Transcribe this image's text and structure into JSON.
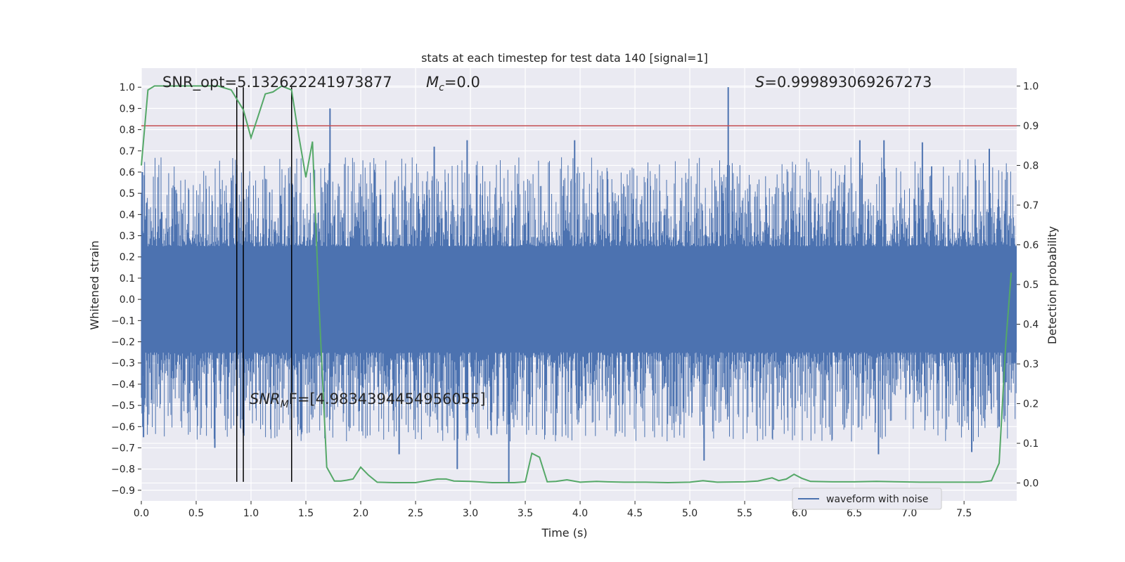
{
  "chart_data": {
    "type": "line",
    "title": "stats at each timestep for test data 140 [signal=1]",
    "xlabel": "Time (s)",
    "ylabel": "Whitened strain",
    "ylabel_right": "Detection probability",
    "xlim": [
      0.0,
      7.98
    ],
    "ylim": [
      -0.95,
      1.09
    ],
    "ylim_right": [
      -0.045,
      1.045
    ],
    "xticks": [
      0.0,
      0.5,
      1.0,
      1.5,
      2.0,
      2.5,
      3.0,
      3.5,
      4.0,
      4.5,
      5.0,
      5.5,
      6.0,
      6.5,
      7.0,
      7.5
    ],
    "xtick_labels": [
      "0.0",
      "0.5",
      "1.0",
      "1.5",
      "2.0",
      "2.5",
      "3.0",
      "3.5",
      "4.0",
      "4.5",
      "5.0",
      "5.5",
      "6.0",
      "6.5",
      "7.0",
      "7.5"
    ],
    "yticks": [
      1.0,
      0.9,
      0.8,
      0.7,
      0.6,
      0.5,
      0.4,
      0.3,
      0.2,
      0.1,
      0.0,
      -0.1,
      -0.2,
      -0.3,
      -0.4,
      -0.5,
      -0.6,
      -0.7,
      -0.8,
      -0.9
    ],
    "ytick_labels": [
      "1.0",
      "0.9",
      "0.8",
      "0.7",
      "0.6",
      "0.5",
      "0.4",
      "0.3",
      "0.2",
      "0.1",
      "0.0",
      "−0.1",
      "−0.2",
      "−0.3",
      "−0.4",
      "−0.5",
      "−0.6",
      "−0.7",
      "−0.8",
      "−0.9"
    ],
    "yticks_right": [
      1.0,
      0.9,
      0.8,
      0.7,
      0.6,
      0.5,
      0.4,
      0.3,
      0.2,
      0.1,
      0.0
    ],
    "ytick_labels_right": [
      "1.0",
      "0.9",
      "0.8",
      "0.7",
      "0.6",
      "0.5",
      "0.4",
      "0.3",
      "0.2",
      "0.1",
      "0.0"
    ],
    "threshold_line": {
      "axis": "right",
      "value": 0.9,
      "color": "#c44e52"
    },
    "vlines": [
      0.87,
      0.93,
      1.37
    ],
    "vline_range": [
      -0.86,
      1.0
    ],
    "waveform": {
      "name": "waveform with noise",
      "color": "#4c72b0",
      "core_amplitude": 0.25,
      "spikes": [
        {
          "t": 1.72,
          "v": 0.9
        },
        {
          "t": 5.35,
          "v": 1.0
        },
        {
          "t": 0.01,
          "v": 0.6
        },
        {
          "t": 2.97,
          "v": 0.75
        },
        {
          "t": 2.67,
          "v": 0.72
        },
        {
          "t": 3.95,
          "v": 0.75
        },
        {
          "t": 6.77,
          "v": 0.75
        },
        {
          "t": 6.55,
          "v": 0.75
        },
        {
          "t": 7.12,
          "v": 0.74
        },
        {
          "t": 7.73,
          "v": 0.71
        },
        {
          "t": 3.35,
          "v": -0.86
        },
        {
          "t": 0.93,
          "v": -0.63
        },
        {
          "t": 2.88,
          "v": -0.8
        },
        {
          "t": 6.72,
          "v": -0.73
        },
        {
          "t": 7.57,
          "v": -0.72
        },
        {
          "t": 0.02,
          "v": -0.65
        },
        {
          "t": 0.67,
          "v": -0.7
        },
        {
          "t": 5.13,
          "v": -0.76
        },
        {
          "t": 7.82,
          "v": -0.6
        },
        {
          "t": 2.35,
          "v": -0.73
        }
      ]
    },
    "detection_probability": {
      "color": "#55a868",
      "t": [
        0.0,
        0.06,
        0.12,
        0.25,
        0.4,
        0.55,
        0.7,
        0.82,
        0.93,
        1.0,
        1.06,
        1.13,
        1.2,
        1.28,
        1.37,
        1.42,
        1.5,
        1.56,
        1.62,
        1.69,
        1.76,
        1.82,
        1.87,
        1.93,
        2.0,
        2.07,
        2.15,
        2.3,
        2.5,
        2.7,
        2.78,
        2.85,
        3.0,
        3.2,
        3.4,
        3.5,
        3.56,
        3.63,
        3.7,
        3.78,
        3.88,
        4.0,
        4.15,
        4.25,
        4.4,
        4.6,
        4.8,
        5.0,
        5.12,
        5.25,
        5.5,
        5.62,
        5.75,
        5.81,
        5.88,
        5.95,
        6.02,
        6.1,
        6.3,
        6.5,
        6.7,
        6.9,
        7.1,
        7.3,
        7.5,
        7.65,
        7.75,
        7.82,
        7.88,
        7.93
      ],
      "p": [
        0.8,
        0.99,
        1.0,
        1.0,
        1.0,
        1.0,
        1.0,
        0.99,
        0.94,
        0.87,
        0.92,
        0.98,
        0.985,
        1.0,
        0.99,
        0.9,
        0.77,
        0.86,
        0.45,
        0.04,
        0.005,
        0.005,
        0.007,
        0.01,
        0.04,
        0.02,
        0.002,
        0.001,
        0.001,
        0.01,
        0.01,
        0.005,
        0.004,
        0.001,
        0.001,
        0.003,
        0.075,
        0.065,
        0.003,
        0.004,
        0.008,
        0.002,
        0.004,
        0.003,
        0.002,
        0.002,
        0.001,
        0.002,
        0.006,
        0.002,
        0.003,
        0.005,
        0.013,
        0.006,
        0.01,
        0.022,
        0.012,
        0.004,
        0.003,
        0.003,
        0.004,
        0.003,
        0.002,
        0.002,
        0.002,
        0.002,
        0.006,
        0.05,
        0.35,
        0.53
      ]
    },
    "annotations": {
      "snr_opt": "SNR_opt=5.132622241973877",
      "mc_symbol": "M",
      "mc_sub": "c",
      "mc_value": "=0.0",
      "s_symbol": "S",
      "s_value": "=0.999893069267273",
      "snr_mf_symbol": "SNR",
      "snr_mf_sub": "M",
      "snr_mf_value": "F=[4.983439445495605",
      "snr_mf_tail": "5]"
    },
    "legend": {
      "label": "waveform with noise",
      "location": "lower-right"
    }
  }
}
